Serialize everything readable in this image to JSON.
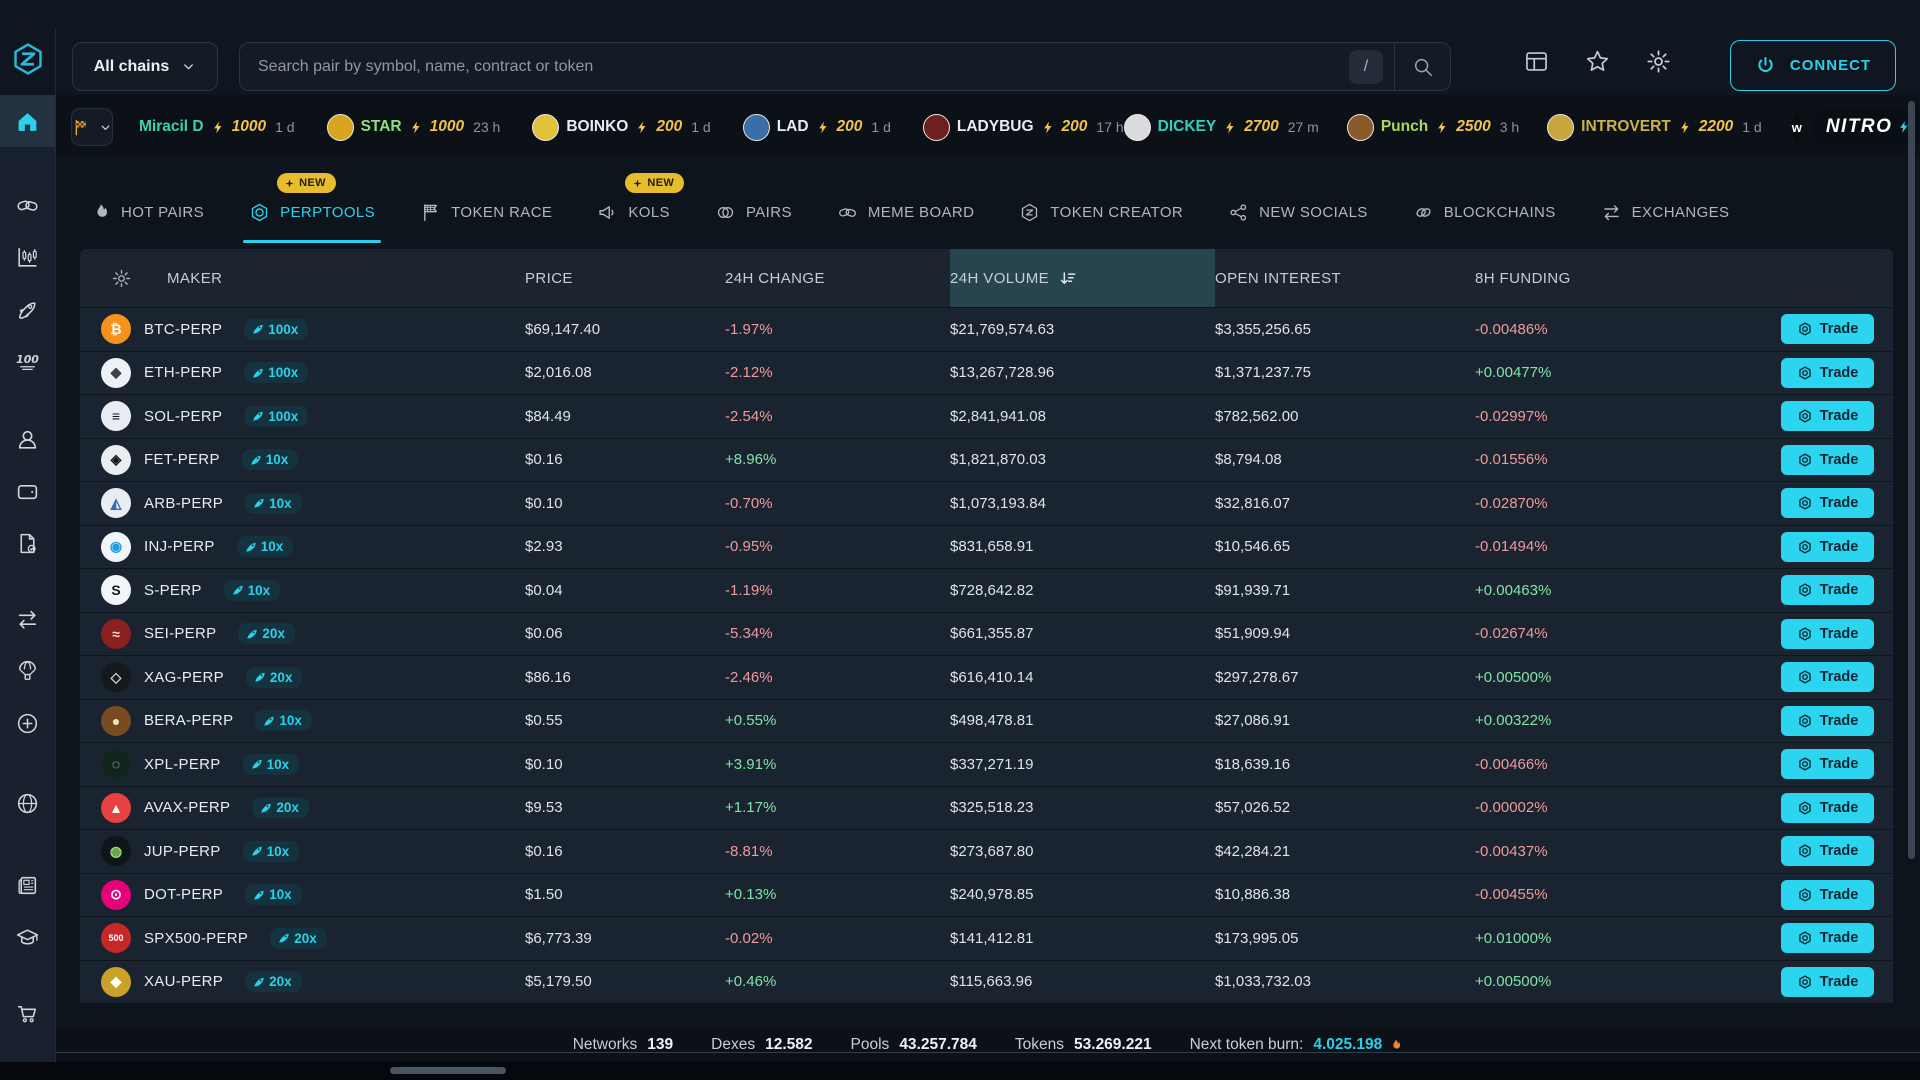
{
  "topbar": {
    "chain_selector": "All chains",
    "search_placeholder": "Search pair by symbol, name, contract or token",
    "search_shortcut": "/",
    "connect_label": "CONNECT"
  },
  "ticker": {
    "items_left": [
      {
        "name": "Miracil D",
        "amount": "1000",
        "time": "1 d",
        "name_color": "#3fd0b0",
        "avatar": ""
      },
      {
        "name": "STAR",
        "amount": "1000",
        "time": "23 h",
        "name_color": "#8ee07f",
        "avatar": "#d9a520"
      },
      {
        "name": "BOINKO",
        "amount": "200",
        "time": "1 d",
        "name_color": "#e8ecf1",
        "avatar": "#e0c23c"
      },
      {
        "name": "LAD",
        "amount": "200",
        "time": "1 d",
        "name_color": "#e8ecf1",
        "avatar": "#3b6ea5"
      },
      {
        "name": "LADYBUG",
        "amount": "200",
        "time": "17 h",
        "name_color": "#e8ecf1",
        "avatar": "#6e1f1f"
      }
    ],
    "items_right": [
      {
        "name": "DICKEY",
        "amount": "2700",
        "time": "27 m",
        "name_color": "#35d0ba",
        "avatar": "#dcdcdc"
      },
      {
        "name": "Punch",
        "amount": "2500",
        "time": "3 h",
        "name_color": "#a8d95c",
        "avatar": "#8a5a2a"
      },
      {
        "name": "INTROVERT",
        "amount": "2200",
        "time": "1 d",
        "name_color": "#cdb04a",
        "avatar": "#caa53d"
      }
    ],
    "whale_label": "w",
    "nitro_label": "NITRO"
  },
  "tabs": [
    {
      "label": "HOT PAIRS",
      "icon": "flame",
      "badge": "",
      "active": false
    },
    {
      "label": "PERPTOOLS",
      "icon": "hexring",
      "badge": "NEW",
      "active": true
    },
    {
      "label": "TOKEN RACE",
      "icon": "raceflag",
      "badge": "",
      "active": false
    },
    {
      "label": "KOLS",
      "icon": "megaphone",
      "badge": "NEW",
      "active": false
    },
    {
      "label": "PAIRS",
      "icon": "pairs",
      "badge": "",
      "active": false
    },
    {
      "label": "MEME BOARD",
      "icon": "pills",
      "badge": "",
      "active": false
    },
    {
      "label": "TOKEN CREATOR",
      "icon": "tokencreator",
      "badge": "",
      "active": false
    },
    {
      "label": "NEW SOCIALS",
      "icon": "share",
      "badge": "",
      "active": false
    },
    {
      "label": "BLOCKCHAINS",
      "icon": "chain",
      "badge": "",
      "active": false
    },
    {
      "label": "EXCHANGES",
      "icon": "swap",
      "badge": "",
      "active": false
    }
  ],
  "sidebar": {
    "items": [
      {
        "icon": "home",
        "active": true,
        "group": ""
      },
      {
        "icon": "pills",
        "active": false,
        "group": "g1"
      },
      {
        "icon": "candles",
        "active": false,
        "group": ""
      },
      {
        "icon": "rocket-outline",
        "active": false,
        "group": ""
      },
      {
        "icon": "hundred",
        "active": false,
        "group": ""
      },
      {
        "icon": "user",
        "active": false,
        "group": "g2"
      },
      {
        "icon": "wallet",
        "active": false,
        "group": ""
      },
      {
        "icon": "doccheck",
        "active": false,
        "group": ""
      },
      {
        "icon": "swap",
        "active": false,
        "group": "g3"
      },
      {
        "icon": "parachute",
        "active": false,
        "group": ""
      },
      {
        "icon": "pluscircle",
        "active": false,
        "group": ""
      },
      {
        "icon": "globe",
        "active": false,
        "group": "g4"
      },
      {
        "icon": "news",
        "active": false,
        "group": "g5"
      },
      {
        "icon": "gradcap",
        "active": false,
        "group": ""
      },
      {
        "icon": "cart",
        "active": false,
        "group": "g3"
      }
    ]
  },
  "table": {
    "headers": [
      "MAKER",
      "PRICE",
      "24H CHANGE",
      "24H VOLUME",
      "OPEN INTEREST",
      "8H FUNDING"
    ],
    "sorted_column": "24H VOLUME",
    "trade_label": "Trade",
    "rows": [
      {
        "maker": "BTC-PERP",
        "lev": "100x",
        "price": "$69,147.40",
        "change": "-1.97%",
        "volume": "$21,769,574.63",
        "oi": "$3,355,256.65",
        "funding": "-0.00486%",
        "icon_bg": "#f7931a",
        "icon_fg": "#ffffff",
        "glyph": "₿"
      },
      {
        "maker": "ETH-PERP",
        "lev": "100x",
        "price": "$2,016.08",
        "change": "-2.12%",
        "volume": "$13,267,728.96",
        "oi": "$1,371,237.75",
        "funding": "+0.00477%",
        "icon_bg": "#edf0f4",
        "icon_fg": "#39424e",
        "glyph": "◆"
      },
      {
        "maker": "SOL-PERP",
        "lev": "100x",
        "price": "$84.49",
        "change": "-2.54%",
        "volume": "$2,841,941.08",
        "oi": "$782,562.00",
        "funding": "-0.02997%",
        "icon_bg": "#e9edf2",
        "icon_fg": "#15181d",
        "glyph": "≡"
      },
      {
        "maker": "FET-PERP",
        "lev": "10x",
        "price": "$0.16",
        "change": "+8.96%",
        "volume": "$1,821,870.03",
        "oi": "$8,794.08",
        "funding": "-0.01556%",
        "icon_bg": "#e9edf2",
        "icon_fg": "#14181d",
        "glyph": "◈"
      },
      {
        "maker": "ARB-PERP",
        "lev": "10x",
        "price": "$0.10",
        "change": "-0.70%",
        "volume": "$1,073,193.84",
        "oi": "$32,816.07",
        "funding": "-0.02870%",
        "icon_bg": "#e9edf2",
        "icon_fg": "#2f6fb2",
        "glyph": "◭"
      },
      {
        "maker": "INJ-PERP",
        "lev": "10x",
        "price": "$2.93",
        "change": "-0.95%",
        "volume": "$831,658.91",
        "oi": "$10,546.65",
        "funding": "-0.01494%",
        "icon_bg": "#f2f5f8",
        "icon_fg": "#1f9bde",
        "glyph": "◉"
      },
      {
        "maker": "S-PERP",
        "lev": "10x",
        "price": "$0.04",
        "change": "-1.19%",
        "volume": "$728,642.82",
        "oi": "$91,939.71",
        "funding": "+0.00463%",
        "icon_bg": "#f2f5f8",
        "icon_fg": "#14181d",
        "glyph": "S"
      },
      {
        "maker": "SEI-PERP",
        "lev": "20x",
        "price": "$0.06",
        "change": "-5.34%",
        "volume": "$661,355.87",
        "oi": "$51,909.94",
        "funding": "-0.02674%",
        "icon_bg": "#8c2020",
        "icon_fg": "#e8d9c4",
        "glyph": "≈"
      },
      {
        "maker": "XAG-PERP",
        "lev": "20x",
        "price": "$86.16",
        "change": "-2.46%",
        "volume": "$616,410.14",
        "oi": "$297,278.67",
        "funding": "+0.00500%",
        "icon_bg": "#15181d",
        "icon_fg": "#c9ccd2",
        "glyph": "◇"
      },
      {
        "maker": "BERA-PERP",
        "lev": "10x",
        "price": "$0.55",
        "change": "+0.55%",
        "volume": "$498,478.81",
        "oi": "$27,086.91",
        "funding": "+0.00322%",
        "icon_bg": "#7a4a21",
        "icon_fg": "#f4e3c2",
        "glyph": "●"
      },
      {
        "maker": "XPL-PERP",
        "lev": "10x",
        "price": "$0.10",
        "change": "+3.91%",
        "volume": "$337,271.19",
        "oi": "$18,639.16",
        "funding": "-0.00466%",
        "icon_bg": "#12251d",
        "icon_fg": "#dfeee6",
        "glyph": "◌"
      },
      {
        "maker": "AVAX-PERP",
        "lev": "20x",
        "price": "$9.53",
        "change": "+1.17%",
        "volume": "$325,518.23",
        "oi": "$57,026.52",
        "funding": "-0.00002%",
        "icon_bg": "#e84142",
        "icon_fg": "#ffffff",
        "glyph": "▲"
      },
      {
        "maker": "JUP-PERP",
        "lev": "10x",
        "price": "$0.16",
        "change": "-8.81%",
        "volume": "$273,687.80",
        "oi": "$42,284.21",
        "funding": "-0.00437%",
        "icon_bg": "#10151c",
        "icon_fg": "#93e06c",
        "glyph": "◍"
      },
      {
        "maker": "DOT-PERP",
        "lev": "10x",
        "price": "$1.50",
        "change": "+0.13%",
        "volume": "$240,978.85",
        "oi": "$10,886.38",
        "funding": "-0.00455%",
        "icon_bg": "#e6007a",
        "icon_fg": "#ffffff",
        "glyph": "⊙"
      },
      {
        "maker": "SPX500-PERP",
        "lev": "20x",
        "price": "$6,773.39",
        "change": "-0.02%",
        "volume": "$141,412.81",
        "oi": "$173,995.05",
        "funding": "+0.01000%",
        "icon_bg": "#c62828",
        "icon_fg": "#ffffff",
        "glyph": "500"
      },
      {
        "maker": "XAU-PERP",
        "lev": "20x",
        "price": "$5,179.50",
        "change": "+0.46%",
        "volume": "$115,663.96",
        "oi": "$1,033,732.03",
        "funding": "+0.00500%",
        "icon_bg": "#c9a227",
        "icon_fg": "#ffffff",
        "glyph": "◆"
      }
    ]
  },
  "footer": {
    "stats": [
      {
        "label": "Networks",
        "value": "139",
        "value_color": "#eef2f6",
        "burn": false
      },
      {
        "label": "Dexes",
        "value": "12.582",
        "value_color": "#eef2f6",
        "burn": false
      },
      {
        "label": "Pools",
        "value": "43.257.784",
        "value_color": "#eef2f6",
        "burn": false
      },
      {
        "label": "Tokens",
        "value": "53.269.221",
        "value_color": "#eef2f6",
        "burn": false
      },
      {
        "label": "Next token burn:",
        "value": "4.025.198",
        "value_color": "#2bd0ea",
        "burn": true
      }
    ]
  }
}
